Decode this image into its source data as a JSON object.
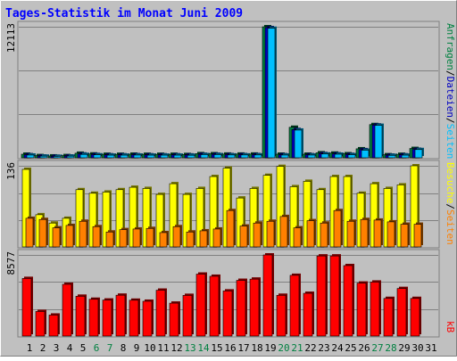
{
  "title": "Tages-Statistik im Monat Juni 2009",
  "colors": {
    "background": "#c0c0c0",
    "frame_light": "#ffffff",
    "frame_dark": "#808080",
    "title": "#0000ff",
    "anfragen": "#008040",
    "dateien": "#0000c0",
    "seiten": "#00c0ff",
    "besuche": "#ffff00",
    "seiten_orange": "#ff8000",
    "kb": "#ff0000",
    "weekend": "#008040",
    "weekday": "#000000"
  },
  "right_labels": {
    "top": [
      {
        "text": "Anfragen",
        "color": "anfragen"
      },
      {
        "text": "/",
        "color": "weekday"
      },
      {
        "text": "Dateien",
        "color": "dateien"
      },
      {
        "text": "/",
        "color": "weekday"
      },
      {
        "text": "Seiten",
        "color": "seiten"
      }
    ],
    "mid": [
      {
        "text": "Besuche",
        "color": "besuche"
      },
      {
        "text": "/",
        "color": "weekday"
      },
      {
        "text": "Seiten",
        "color": "seiten_orange"
      }
    ],
    "bottom": [
      {
        "text": "kB",
        "color": "kb"
      }
    ]
  },
  "chart_data": [
    {
      "type": "bar",
      "name": "anfragen-dateien-seiten",
      "y_max_label": "12113",
      "ylim": [
        0,
        12113
      ],
      "categories": [
        "1",
        "2",
        "3",
        "4",
        "5",
        "6",
        "7",
        "8",
        "9",
        "10",
        "11",
        "12",
        "13",
        "14",
        "15",
        "16",
        "17",
        "18",
        "19",
        "20",
        "21",
        "22",
        "23",
        "24",
        "25",
        "26",
        "27",
        "28",
        "29",
        "30",
        "31"
      ],
      "series": [
        {
          "name": "Anfragen",
          "color": "anfragen",
          "values": [
            330,
            200,
            170,
            200,
            420,
            350,
            320,
            320,
            330,
            320,
            320,
            320,
            300,
            380,
            370,
            340,
            340,
            340,
            12113,
            330,
            2820,
            330,
            460,
            430,
            370,
            830,
            3070,
            280,
            320,
            860,
            0
          ]
        },
        {
          "name": "Dateien",
          "color": "dateien",
          "values": [
            280,
            160,
            140,
            160,
            350,
            300,
            270,
            270,
            280,
            270,
            270,
            270,
            260,
            320,
            320,
            290,
            290,
            290,
            12030,
            280,
            2610,
            280,
            390,
            360,
            310,
            750,
            3030,
            240,
            270,
            780,
            0
          ]
        },
        {
          "name": "Seiten",
          "color": "seiten",
          "values": [
            250,
            150,
            130,
            150,
            310,
            270,
            240,
            240,
            250,
            240,
            240,
            240,
            230,
            290,
            290,
            260,
            260,
            260,
            11970,
            250,
            2560,
            250,
            350,
            330,
            280,
            700,
            3000,
            220,
            240,
            760,
            0
          ]
        }
      ]
    },
    {
      "type": "bar",
      "name": "besuche-seiten",
      "y_max_label": "136",
      "ylim": [
        0,
        136
      ],
      "categories": [
        "1",
        "2",
        "3",
        "4",
        "5",
        "6",
        "7",
        "8",
        "9",
        "10",
        "11",
        "12",
        "13",
        "14",
        "15",
        "16",
        "17",
        "18",
        "19",
        "20",
        "21",
        "22",
        "23",
        "24",
        "25",
        "26",
        "27",
        "28",
        "29",
        "30",
        "31"
      ],
      "series": [
        {
          "name": "Besuche",
          "color": "besuche",
          "values": [
            130,
            54,
            40,
            48,
            96,
            90,
            92,
            96,
            100,
            98,
            88,
            106,
            88,
            98,
            118,
            132,
            82,
            98,
            120,
            135,
            101,
            110,
            96,
            118,
            118,
            90,
            106,
            98,
            104,
            136,
            0
          ]
        },
        {
          "name": "Seiten",
          "color": "seiten_orange",
          "values": [
            48,
            46,
            32,
            36,
            43,
            34,
            25,
            29,
            30,
            31,
            24,
            34,
            25,
            27,
            30,
            61,
            35,
            40,
            43,
            51,
            32,
            44,
            40,
            61,
            43,
            46,
            45,
            42,
            38,
            38,
            0
          ]
        }
      ]
    },
    {
      "type": "bar",
      "name": "kb",
      "y_max_label": "8577",
      "ylim": [
        0,
        8577
      ],
      "categories": [
        "1",
        "2",
        "3",
        "4",
        "5",
        "6",
        "7",
        "8",
        "9",
        "10",
        "11",
        "12",
        "13",
        "14",
        "15",
        "16",
        "17",
        "18",
        "19",
        "20",
        "21",
        "22",
        "23",
        "24",
        "25",
        "26",
        "27",
        "28",
        "29",
        "30",
        "31"
      ],
      "series": [
        {
          "name": "kB",
          "color": "kb",
          "values": [
            6090,
            2600,
            2220,
            5470,
            4210,
            3890,
            3810,
            4320,
            3790,
            3680,
            4850,
            3480,
            4300,
            6550,
            6320,
            4770,
            5890,
            6020,
            8577,
            4310,
            6420,
            4520,
            8470,
            8470,
            7450,
            5600,
            5710,
            3980,
            5030,
            3980,
            0
          ]
        }
      ]
    }
  ],
  "x_labels": [
    {
      "text": "1",
      "weekend": false
    },
    {
      "text": "2",
      "weekend": false
    },
    {
      "text": "3",
      "weekend": false
    },
    {
      "text": "4",
      "weekend": false
    },
    {
      "text": "5",
      "weekend": false
    },
    {
      "text": "6",
      "weekend": true
    },
    {
      "text": "7",
      "weekend": true
    },
    {
      "text": "8",
      "weekend": false
    },
    {
      "text": "9",
      "weekend": false
    },
    {
      "text": "10",
      "weekend": false
    },
    {
      "text": "11",
      "weekend": false
    },
    {
      "text": "12",
      "weekend": false
    },
    {
      "text": "13",
      "weekend": true
    },
    {
      "text": "14",
      "weekend": true
    },
    {
      "text": "15",
      "weekend": false
    },
    {
      "text": "16",
      "weekend": false
    },
    {
      "text": "17",
      "weekend": false
    },
    {
      "text": "18",
      "weekend": false
    },
    {
      "text": "19",
      "weekend": false
    },
    {
      "text": "20",
      "weekend": true
    },
    {
      "text": "21",
      "weekend": true
    },
    {
      "text": "22",
      "weekend": false
    },
    {
      "text": "23",
      "weekend": false
    },
    {
      "text": "24",
      "weekend": false
    },
    {
      "text": "25",
      "weekend": false
    },
    {
      "text": "26",
      "weekend": false
    },
    {
      "text": "27",
      "weekend": true
    },
    {
      "text": "28",
      "weekend": true
    },
    {
      "text": "29",
      "weekend": false
    },
    {
      "text": "30",
      "weekend": false
    },
    {
      "text": "31",
      "weekend": false
    }
  ]
}
